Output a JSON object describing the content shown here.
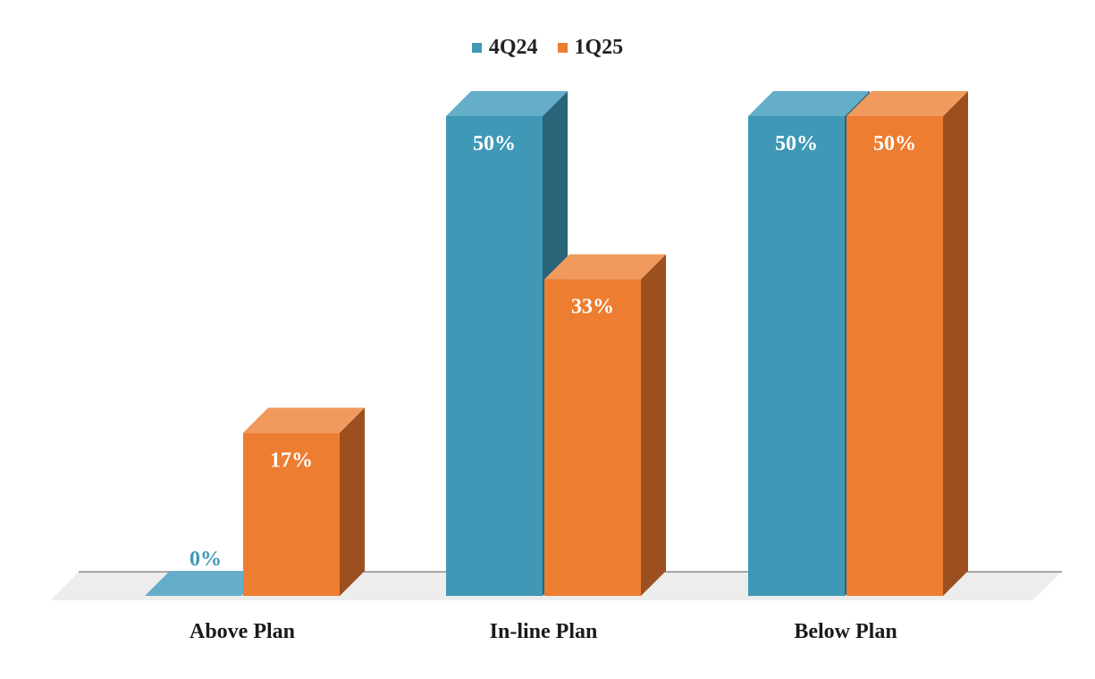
{
  "chart_data": {
    "type": "bar",
    "style": "3d-clustered",
    "categories": [
      "Above Plan",
      "In-line Plan",
      "Below Plan"
    ],
    "series": [
      {
        "name": "4Q24",
        "values": [
          0,
          50,
          50
        ],
        "labels": [
          "0%",
          "50%",
          "50%"
        ],
        "color": "#3F98B5"
      },
      {
        "name": "1Q25",
        "values": [
          17,
          33,
          50
        ],
        "labels": [
          "17%",
          "33%",
          "50%"
        ],
        "color": "#ED7D31"
      }
    ],
    "ylim": [
      0,
      50
    ],
    "legend_position": "top-center",
    "grid": false
  },
  "colors": {
    "series1_front": "#3F98B5",
    "series1_top": "#65AECA",
    "series1_side": "#2A6478",
    "series2_front": "#ED7D31",
    "series2_top": "#F19A5E",
    "series2_side": "#9C4F1F",
    "floor": "#EDEDED"
  }
}
